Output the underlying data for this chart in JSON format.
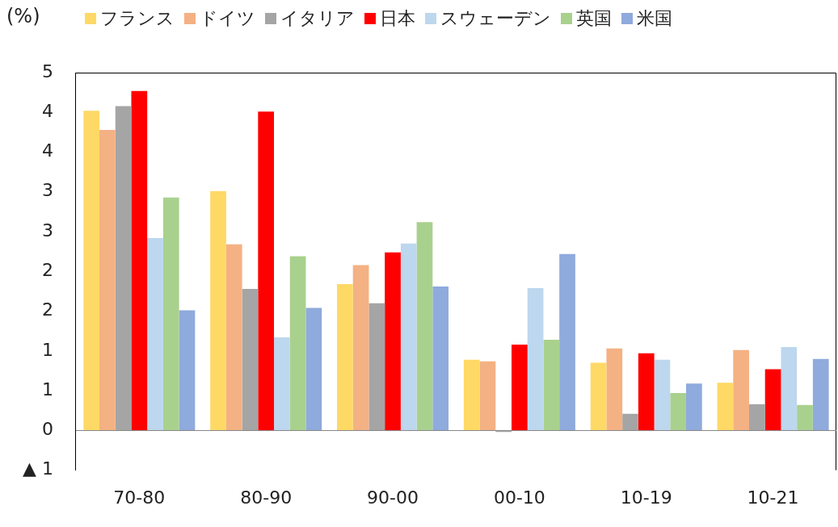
{
  "chart_data": {
    "type": "bar",
    "ylabel": "(%)",
    "categories": [
      "70-80",
      "80-90",
      "90-00",
      "00-10",
      "10-19",
      "10-21"
    ],
    "series": [
      {
        "name": "フランス",
        "color": "#ffd966",
        "values": [
          4.02,
          3.01,
          1.84,
          0.89,
          0.85,
          0.6
        ]
      },
      {
        "name": "ドイツ",
        "color": "#f4b183",
        "values": [
          3.78,
          2.34,
          2.08,
          0.87,
          1.03,
          1.01
        ]
      },
      {
        "name": "イタリア",
        "color": "#a5a5a5",
        "values": [
          4.08,
          1.78,
          1.6,
          -0.02,
          0.21,
          0.33
        ]
      },
      {
        "name": "日本",
        "color": "#ff0000",
        "values": [
          4.27,
          4.01,
          2.24,
          1.08,
          0.97,
          0.77
        ]
      },
      {
        "name": "スウェーデン",
        "color": "#bdd7ee",
        "values": [
          2.42,
          1.17,
          2.35,
          1.79,
          0.89,
          1.05
        ]
      },
      {
        "name": "英国",
        "color": "#a9d18e",
        "values": [
          2.93,
          2.19,
          2.62,
          1.14,
          0.47,
          0.32
        ]
      },
      {
        "name": "米国",
        "color": "#8faadc",
        "values": [
          1.51,
          1.54,
          1.81,
          2.22,
          0.59,
          0.9
        ]
      }
    ],
    "ylim": [
      -0.5,
      4.5
    ],
    "yticks": [
      {
        "value": -0.5,
        "label": "▲ 1"
      },
      {
        "value": 0,
        "label": "0"
      },
      {
        "value": 0.5,
        "label": "1"
      },
      {
        "value": 1,
        "label": "1"
      },
      {
        "value": 1.5,
        "label": "2"
      },
      {
        "value": 2,
        "label": "2"
      },
      {
        "value": 2.5,
        "label": "3"
      },
      {
        "value": 3,
        "label": "3"
      },
      {
        "value": 3.5,
        "label": "4"
      },
      {
        "value": 4,
        "label": "4"
      },
      {
        "value": 4.5,
        "label": "5"
      }
    ],
    "legend": "top left"
  }
}
